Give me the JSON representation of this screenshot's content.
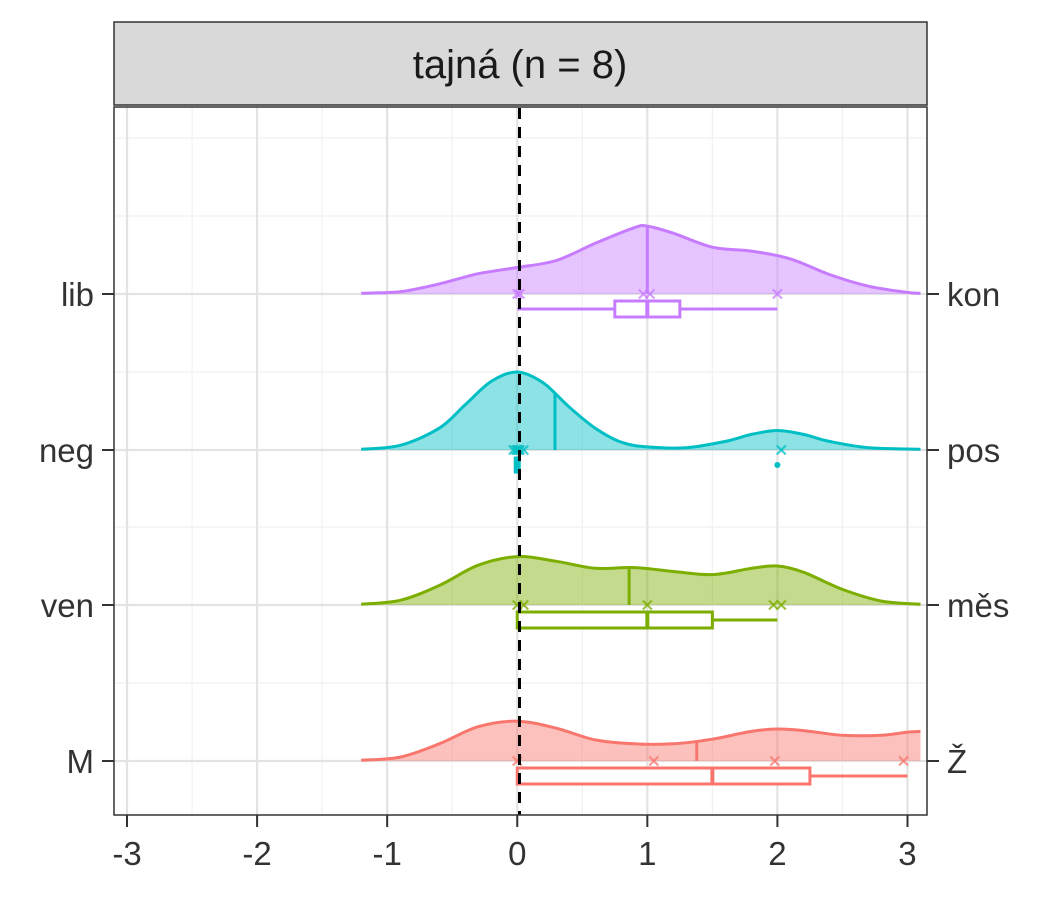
{
  "chart_data": {
    "type": "density-ridgeline",
    "panel_title": "tajná (n = 8)",
    "xlim": [
      -3.1,
      3.15
    ],
    "x_ticks": [
      "-3",
      "-2",
      "-1",
      "0",
      "1",
      "2",
      "3"
    ],
    "x_tick_values": [
      -3,
      -2,
      -1,
      0,
      1,
      2,
      3
    ],
    "reference_line_x": 0,
    "grid": true,
    "rows": [
      {
        "left_label": "lib",
        "right_label": "kon",
        "color": "#C77CFF",
        "mean": 1.0,
        "points": [
          0,
          0.02,
          0.97,
          1.02,
          2.0
        ],
        "box": {
          "q1": 0.75,
          "median": 1.0,
          "q3": 1.25,
          "whisker_low": 0,
          "whisker_high": 2
        },
        "outliers": [],
        "density": {
          "x": [
            -1.2,
            -0.9,
            -0.6,
            -0.3,
            0,
            0.3,
            0.6,
            0.9,
            1.0,
            1.2,
            1.5,
            1.8,
            2.1,
            2.4,
            2.7,
            3.0,
            3.1
          ],
          "y": [
            0.01,
            0.03,
            0.13,
            0.26,
            0.34,
            0.43,
            0.65,
            0.85,
            0.87,
            0.78,
            0.6,
            0.55,
            0.45,
            0.25,
            0.1,
            0.02,
            0.01
          ]
        }
      },
      {
        "left_label": "neg",
        "right_label": "pos",
        "color": "#00BFC4",
        "mean": 0.29,
        "points": [
          -0.03,
          -0.01,
          0,
          0.01,
          0.02,
          0.05,
          2.03
        ],
        "box": {
          "q1": 0,
          "median": 0,
          "q3": 0,
          "whisker_low": 0,
          "whisker_high": 0
        },
        "outliers": [
          2.0
        ],
        "density": {
          "x": [
            -1.2,
            -0.9,
            -0.6,
            -0.4,
            -0.2,
            0,
            0.2,
            0.4,
            0.6,
            0.8,
            1.0,
            1.3,
            1.6,
            1.8,
            2.0,
            2.2,
            2.4,
            2.7,
            3.1
          ],
          "y": [
            0.01,
            0.06,
            0.28,
            0.58,
            0.88,
            1.0,
            0.86,
            0.55,
            0.28,
            0.1,
            0.04,
            0.03,
            0.11,
            0.2,
            0.25,
            0.2,
            0.11,
            0.03,
            0.01
          ]
        }
      },
      {
        "left_label": "ven",
        "right_label": "měs",
        "color": "#7CAE00",
        "mean": 0.86,
        "points": [
          0,
          0.05,
          1.0,
          1.97,
          2.03
        ],
        "box": {
          "q1": 0,
          "median": 1.0,
          "q3": 1.5,
          "whisker_low": 0,
          "whisker_high": 2
        },
        "outliers": [],
        "density": {
          "x": [
            -1.2,
            -0.9,
            -0.6,
            -0.3,
            0,
            0.3,
            0.6,
            0.9,
            1.2,
            1.5,
            1.8,
            2.0,
            2.2,
            2.5,
            2.8,
            3.1
          ],
          "y": [
            0.01,
            0.06,
            0.25,
            0.51,
            0.62,
            0.56,
            0.47,
            0.48,
            0.43,
            0.39,
            0.47,
            0.5,
            0.42,
            0.2,
            0.05,
            0.01
          ]
        }
      },
      {
        "left_label": "M",
        "right_label": "Ž",
        "color": "#F8766D",
        "mean": 1.38,
        "points": [
          0,
          1.05,
          1.98,
          2.97
        ],
        "box": {
          "q1": 0,
          "median": 1.5,
          "q3": 2.25,
          "whisker_low": 0,
          "whisker_high": 3
        },
        "outliers": [],
        "density": {
          "x": [
            -1.2,
            -0.9,
            -0.6,
            -0.3,
            0,
            0.3,
            0.6,
            0.9,
            1.2,
            1.5,
            1.8,
            2.0,
            2.2,
            2.5,
            2.8,
            3.0,
            3.1
          ],
          "y": [
            0.01,
            0.05,
            0.22,
            0.44,
            0.51,
            0.42,
            0.27,
            0.22,
            0.22,
            0.28,
            0.38,
            0.41,
            0.39,
            0.33,
            0.33,
            0.37,
            0.38
          ]
        }
      }
    ]
  }
}
